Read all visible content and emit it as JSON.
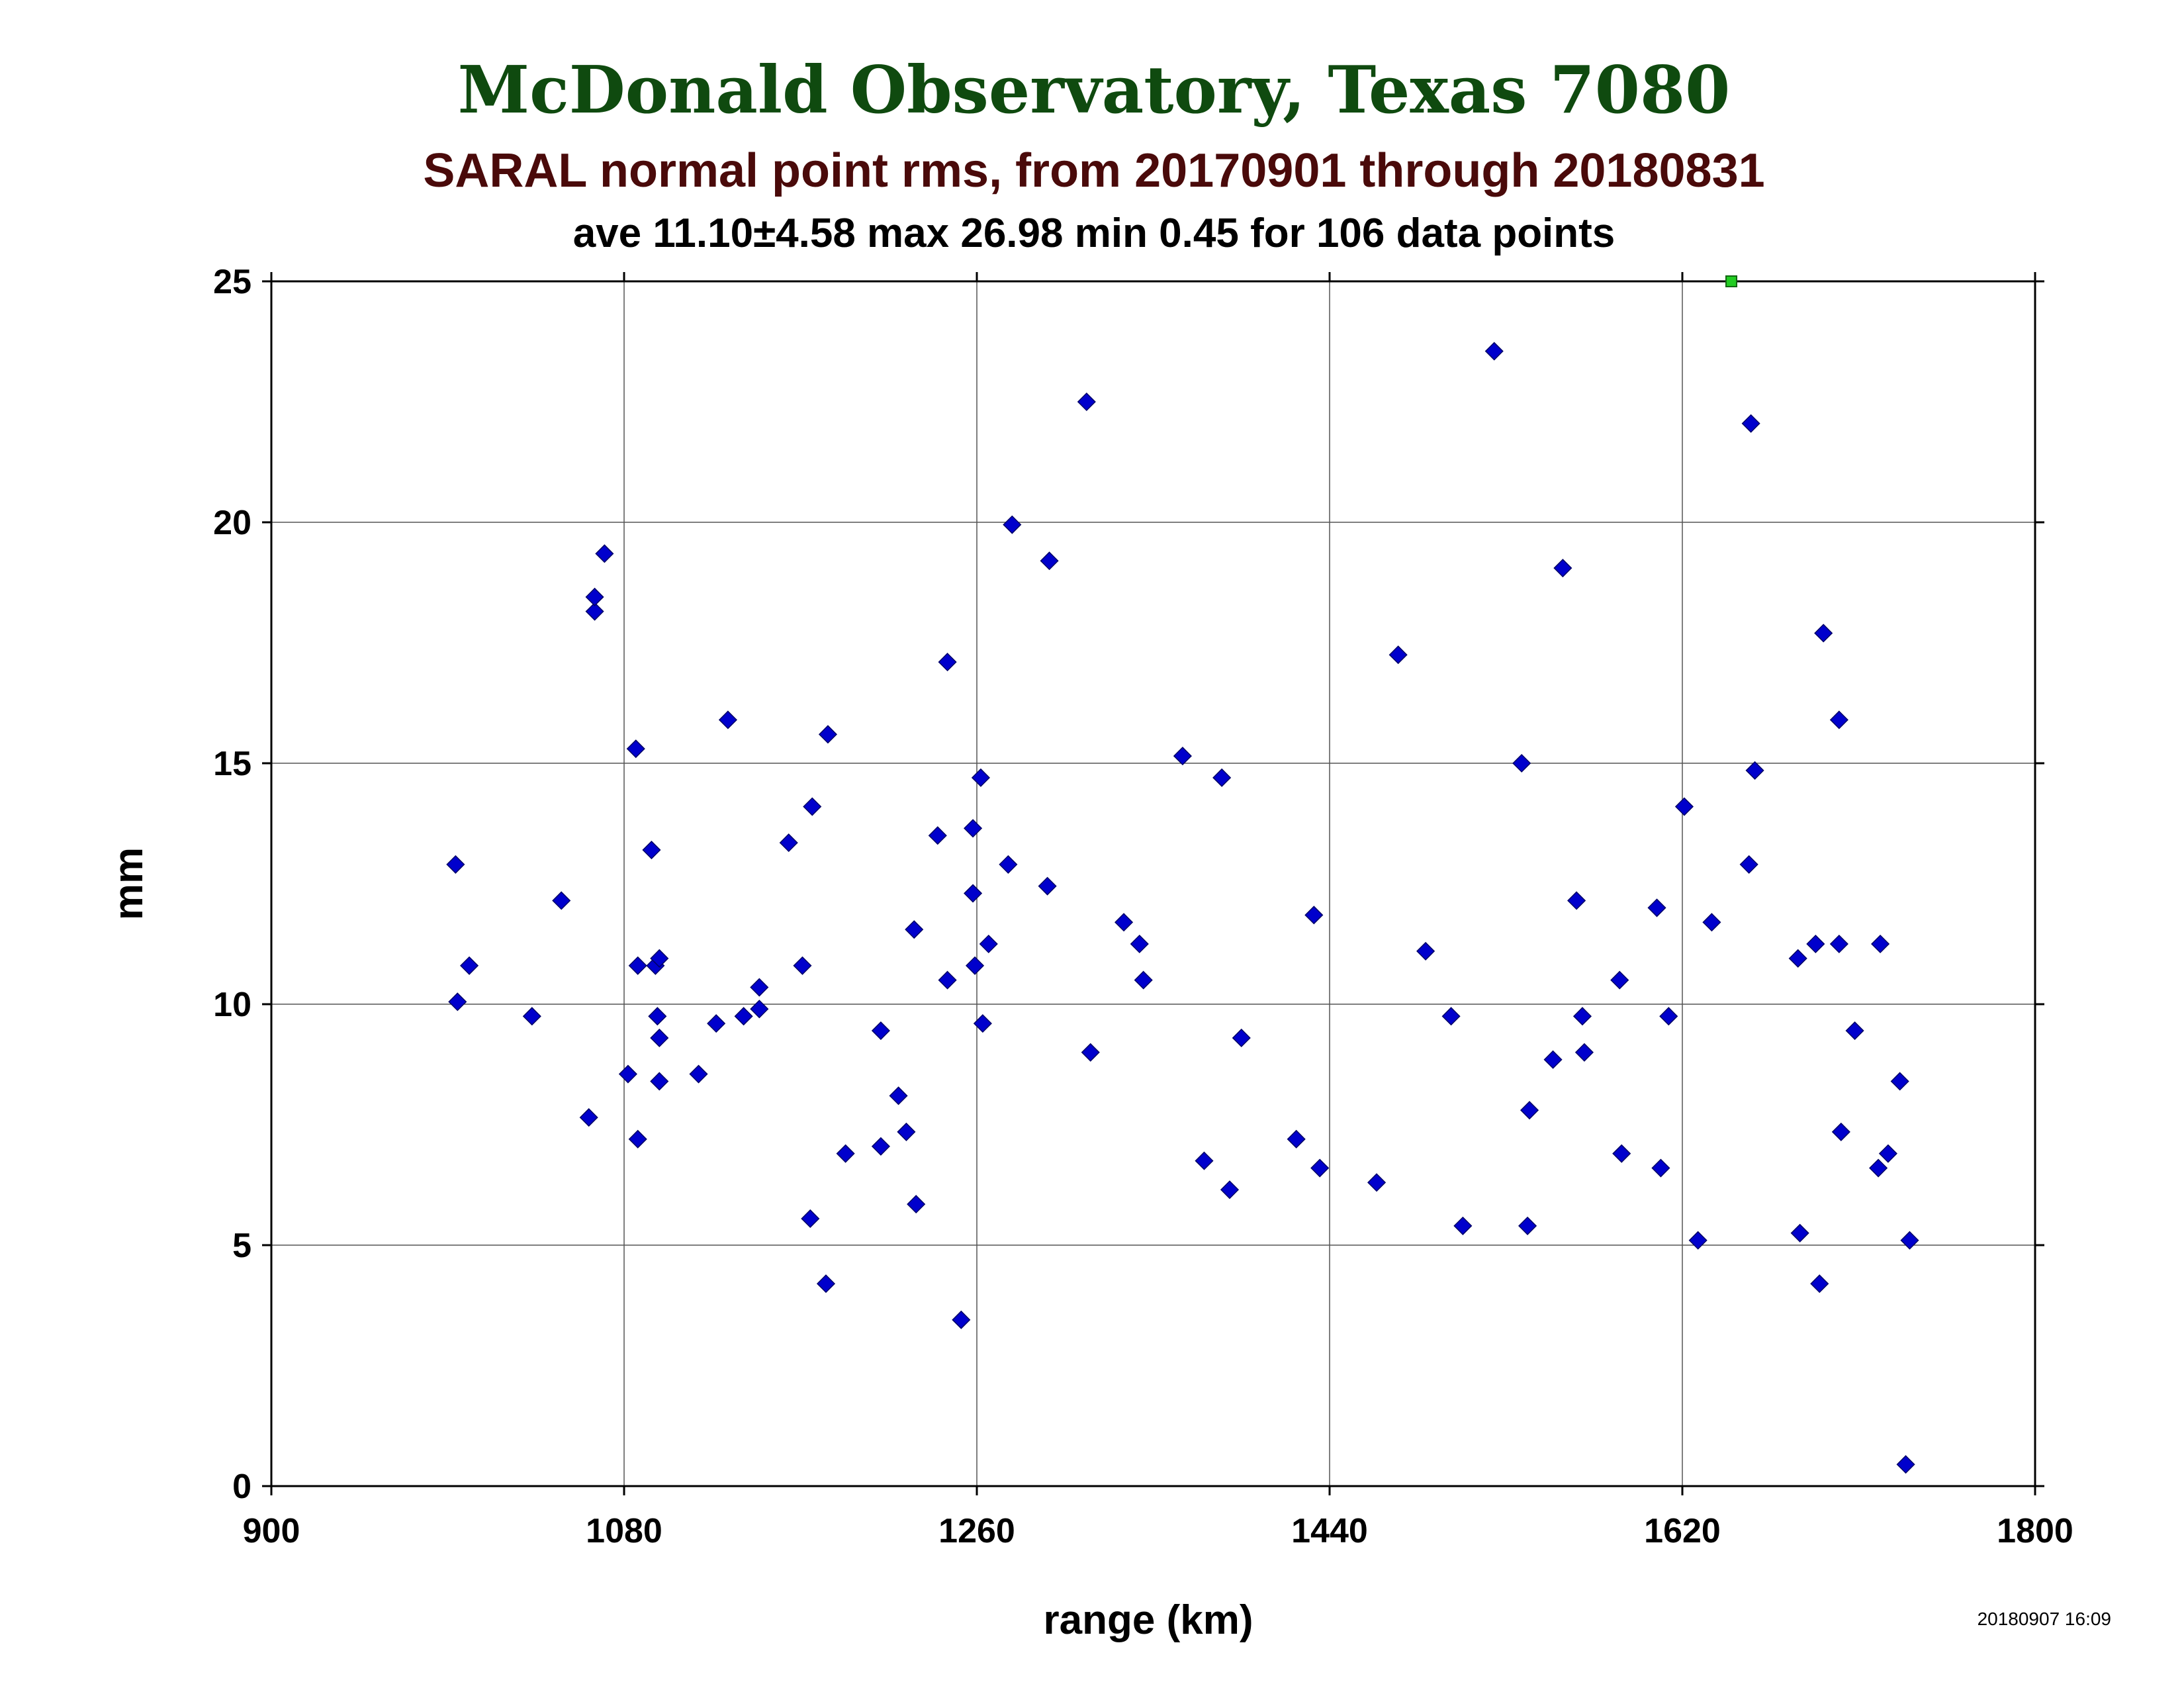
{
  "chart_data": {
    "type": "scatter",
    "title": "McDonald Observatory, Texas 7080",
    "subtitle": "SARAL normal point rms, from 20170901 through 20180831",
    "stats": "ave 11.10±4.58 max 26.98 min 0.45 for 106 data points",
    "xlabel": "range (km)",
    "ylabel": "mm",
    "timestamp": "20180907 16:09",
    "xlim": [
      900,
      1800
    ],
    "ylim": [
      0,
      25
    ],
    "xticks": [
      900,
      1080,
      1260,
      1440,
      1620,
      1800
    ],
    "yticks": [
      0,
      5,
      10,
      15,
      20,
      25
    ],
    "grid": true,
    "colors": {
      "title": "#0f4a0f",
      "subtitle": "#4a0a0a",
      "point": "#0000cc",
      "outlier": "#22cc22"
    },
    "outliers": [
      {
        "x": 1645,
        "y": 25
      }
    ],
    "points": [
      {
        "x": 994,
        "y": 12.9
      },
      {
        "x": 995,
        "y": 10.05
      },
      {
        "x": 1001,
        "y": 10.8
      },
      {
        "x": 1033,
        "y": 9.75
      },
      {
        "x": 1048,
        "y": 12.15
      },
      {
        "x": 1062,
        "y": 7.65
      },
      {
        "x": 1065,
        "y": 18.15
      },
      {
        "x": 1065,
        "y": 18.45
      },
      {
        "x": 1070,
        "y": 19.35
      },
      {
        "x": 1082,
        "y": 8.55
      },
      {
        "x": 1086,
        "y": 15.3
      },
      {
        "x": 1087,
        "y": 10.8
      },
      {
        "x": 1087,
        "y": 7.2
      },
      {
        "x": 1094,
        "y": 13.2
      },
      {
        "x": 1096,
        "y": 10.8
      },
      {
        "x": 1098,
        "y": 10.95
      },
      {
        "x": 1097,
        "y": 9.75
      },
      {
        "x": 1098,
        "y": 9.3
      },
      {
        "x": 1098,
        "y": 8.4
      },
      {
        "x": 1118,
        "y": 8.55
      },
      {
        "x": 1127,
        "y": 9.6
      },
      {
        "x": 1133,
        "y": 15.9
      },
      {
        "x": 1141,
        "y": 9.75
      },
      {
        "x": 1149,
        "y": 9.9
      },
      {
        "x": 1149,
        "y": 10.35
      },
      {
        "x": 1164,
        "y": 13.35
      },
      {
        "x": 1171,
        "y": 10.8
      },
      {
        "x": 1176,
        "y": 14.1
      },
      {
        "x": 1175,
        "y": 5.55
      },
      {
        "x": 1183,
        "y": 4.2
      },
      {
        "x": 1184,
        "y": 15.6
      },
      {
        "x": 1193,
        "y": 6.9
      },
      {
        "x": 1211,
        "y": 9.45
      },
      {
        "x": 1211,
        "y": 7.05
      },
      {
        "x": 1220,
        "y": 8.1
      },
      {
        "x": 1224,
        "y": 7.35
      },
      {
        "x": 1228,
        "y": 11.55
      },
      {
        "x": 1229,
        "y": 5.85
      },
      {
        "x": 1240,
        "y": 13.5
      },
      {
        "x": 1245,
        "y": 17.1
      },
      {
        "x": 1245,
        "y": 10.5
      },
      {
        "x": 1252,
        "y": 3.45
      },
      {
        "x": 1258,
        "y": 13.65
      },
      {
        "x": 1258,
        "y": 12.3
      },
      {
        "x": 1259,
        "y": 10.8
      },
      {
        "x": 1262,
        "y": 14.7
      },
      {
        "x": 1263,
        "y": 9.6
      },
      {
        "x": 1266,
        "y": 11.25
      },
      {
        "x": 1276,
        "y": 12.9
      },
      {
        "x": 1278,
        "y": 19.95
      },
      {
        "x": 1296,
        "y": 12.45
      },
      {
        "x": 1297,
        "y": 19.2
      },
      {
        "x": 1316,
        "y": 22.5
      },
      {
        "x": 1318,
        "y": 9.0
      },
      {
        "x": 1335,
        "y": 11.7
      },
      {
        "x": 1343,
        "y": 11.25
      },
      {
        "x": 1345,
        "y": 10.5
      },
      {
        "x": 1365,
        "y": 15.15
      },
      {
        "x": 1376,
        "y": 6.75
      },
      {
        "x": 1385,
        "y": 14.7
      },
      {
        "x": 1389,
        "y": 6.15
      },
      {
        "x": 1395,
        "y": 9.3
      },
      {
        "x": 1423,
        "y": 7.2
      },
      {
        "x": 1432,
        "y": 11.85
      },
      {
        "x": 1435,
        "y": 6.6
      },
      {
        "x": 1464,
        "y": 6.3
      },
      {
        "x": 1475,
        "y": 17.25
      },
      {
        "x": 1489,
        "y": 11.1
      },
      {
        "x": 1502,
        "y": 9.75
      },
      {
        "x": 1508,
        "y": 5.4
      },
      {
        "x": 1524,
        "y": 23.55
      },
      {
        "x": 1538,
        "y": 15.0
      },
      {
        "x": 1541,
        "y": 5.4
      },
      {
        "x": 1542,
        "y": 7.8
      },
      {
        "x": 1554,
        "y": 8.85
      },
      {
        "x": 1559,
        "y": 19.05
      },
      {
        "x": 1566,
        "y": 12.15
      },
      {
        "x": 1569,
        "y": 9.75
      },
      {
        "x": 1570,
        "y": 9.0
      },
      {
        "x": 1588,
        "y": 10.5
      },
      {
        "x": 1589,
        "y": 6.9
      },
      {
        "x": 1607,
        "y": 12.0
      },
      {
        "x": 1609,
        "y": 6.6
      },
      {
        "x": 1613,
        "y": 9.75
      },
      {
        "x": 1621,
        "y": 14.1
      },
      {
        "x": 1628,
        "y": 5.1
      },
      {
        "x": 1635,
        "y": 11.7
      },
      {
        "x": 1654,
        "y": 12.9
      },
      {
        "x": 1655,
        "y": 22.05
      },
      {
        "x": 1657,
        "y": 14.85
      },
      {
        "x": 1679,
        "y": 10.95
      },
      {
        "x": 1680,
        "y": 5.25
      },
      {
        "x": 1688,
        "y": 11.25
      },
      {
        "x": 1690,
        "y": 4.2
      },
      {
        "x": 1692,
        "y": 17.7
      },
      {
        "x": 1700,
        "y": 11.25
      },
      {
        "x": 1700,
        "y": 15.9
      },
      {
        "x": 1701,
        "y": 7.35
      },
      {
        "x": 1708,
        "y": 9.45
      },
      {
        "x": 1720,
        "y": 6.6
      },
      {
        "x": 1721,
        "y": 11.25
      },
      {
        "x": 1725,
        "y": 6.9
      },
      {
        "x": 1731,
        "y": 8.4
      },
      {
        "x": 1734,
        "y": 0.45
      },
      {
        "x": 1736,
        "y": 5.1
      }
    ]
  }
}
